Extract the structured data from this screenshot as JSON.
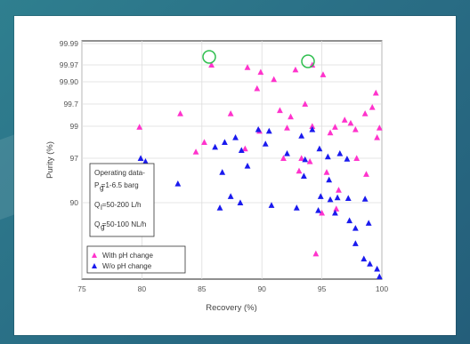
{
  "chart_data": {
    "type": "scatter",
    "xlabel": "Recovery (%)",
    "ylabel": "Purity (%)",
    "xlim": [
      75,
      100
    ],
    "x_ticks": [
      "75",
      "80",
      "85",
      "90",
      "95",
      "100"
    ],
    "y_ticks": [
      "99.99",
      "99.97",
      "99.90",
      "99.7",
      "99",
      "97",
      "90"
    ],
    "grid": true,
    "legend_position": "bottom-left",
    "info_box": {
      "title": "Operating data-",
      "lines": [
        "P =1-6.5 barg",
        "Q =50-200 L/h",
        "Q =50-100 NL/h"
      ],
      "subscripts": [
        "g",
        "l",
        "g"
      ]
    },
    "series": [
      {
        "name": "With pH change",
        "color": "#ff33cc",
        "marker": "triangle",
        "points": [
          [
            85.8,
            99.97
          ],
          [
            94.2,
            99.97
          ],
          [
            88.8,
            99.96
          ],
          [
            89.9,
            99.94
          ],
          [
            91.0,
            99.91
          ],
          [
            92.8,
            99.95
          ],
          [
            95.1,
            99.93
          ],
          [
            89.6,
            99.84
          ],
          [
            93.6,
            99.7
          ],
          [
            91.5,
            99.5
          ],
          [
            87.4,
            99.4
          ],
          [
            83.2,
            99.4
          ],
          [
            92.4,
            99.3
          ],
          [
            96.9,
            99.2
          ],
          [
            98.6,
            99.4
          ],
          [
            99.2,
            99.6
          ],
          [
            99.5,
            99.8
          ],
          [
            94.2,
            99.0
          ],
          [
            97.4,
            99.1
          ],
          [
            96.1,
            98.95
          ],
          [
            79.8,
            98.95
          ],
          [
            89.8,
            98.7
          ],
          [
            92.1,
            98.9
          ],
          [
            95.7,
            98.6
          ],
          [
            97.8,
            98.8
          ],
          [
            99.8,
            98.9
          ],
          [
            85.2,
            98.0
          ],
          [
            84.5,
            97.4
          ],
          [
            88.6,
            97.6
          ],
          [
            91.8,
            97.0
          ],
          [
            93.3,
            97.0
          ],
          [
            97.9,
            97.0
          ],
          [
            99.6,
            98.3
          ],
          [
            93.1,
            95.0
          ],
          [
            95.4,
            94.8
          ],
          [
            96.4,
            92.0
          ],
          [
            98.7,
            94.5
          ],
          [
            94.5,
            80.0
          ],
          [
            94.0,
            96.5
          ],
          [
            95.0,
            88.0
          ],
          [
            96.2,
            88.8
          ]
        ]
      },
      {
        "name": "W/o pH change",
        "color": "#1a1aee",
        "marker": "triangle",
        "points": [
          [
            79.9,
            97.0
          ],
          [
            80.3,
            96.5
          ],
          [
            83.0,
            93.0
          ],
          [
            86.9,
            98.0
          ],
          [
            87.8,
            98.3
          ],
          [
            86.1,
            97.7
          ],
          [
            88.3,
            97.5
          ],
          [
            89.7,
            98.8
          ],
          [
            90.6,
            98.7
          ],
          [
            90.3,
            97.9
          ],
          [
            86.7,
            94.8
          ],
          [
            88.8,
            95.8
          ],
          [
            87.4,
            91.0
          ],
          [
            88.2,
            90.0
          ],
          [
            86.5,
            89.0
          ],
          [
            90.8,
            89.5
          ],
          [
            92.9,
            89.0
          ],
          [
            93.3,
            98.4
          ],
          [
            92.1,
            97.3
          ],
          [
            93.6,
            96.8
          ],
          [
            95.5,
            97.1
          ],
          [
            96.5,
            97.3
          ],
          [
            97.1,
            96.9
          ],
          [
            94.2,
            98.8
          ],
          [
            94.8,
            97.6
          ],
          [
            95.6,
            93.6
          ],
          [
            94.9,
            91.0
          ],
          [
            95.7,
            90.5
          ],
          [
            96.3,
            90.8
          ],
          [
            97.2,
            90.7
          ],
          [
            98.6,
            90.6
          ],
          [
            94.7,
            88.5
          ],
          [
            96.1,
            88.0
          ],
          [
            97.3,
            86.5
          ],
          [
            97.8,
            85.0
          ],
          [
            98.9,
            86.0
          ],
          [
            97.8,
            82.0
          ],
          [
            98.5,
            79.0
          ],
          [
            99.0,
            78.0
          ],
          [
            99.6,
            77.0
          ],
          [
            99.8,
            75.5
          ],
          [
            93.5,
            94.2
          ]
        ]
      }
    ]
  }
}
